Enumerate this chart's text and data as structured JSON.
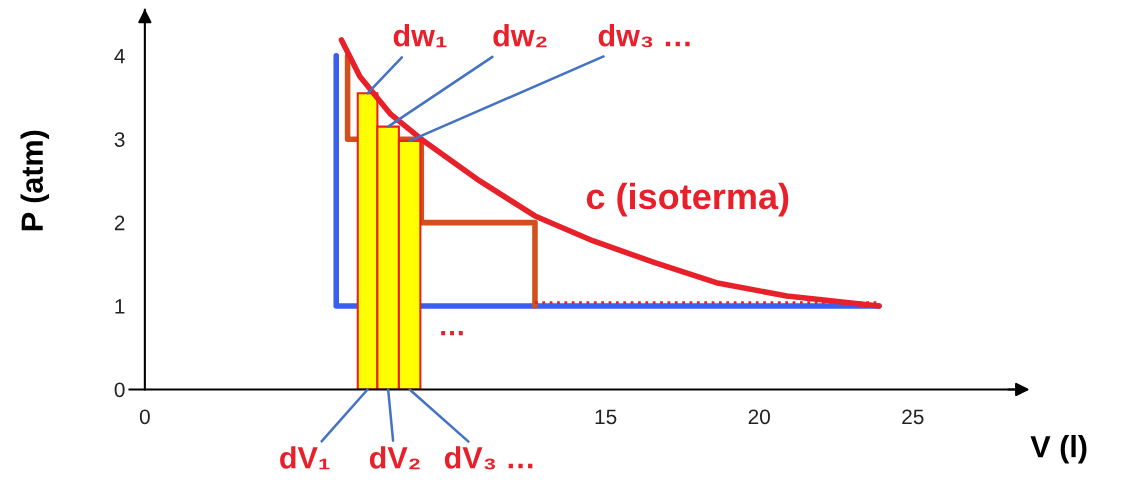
{
  "chart_data": {
    "type": "line",
    "xlabel": "V (l)",
    "ylabel": "P (atm)",
    "xlim": [
      -0.5,
      28.6
    ],
    "ylim": [
      0,
      4.55
    ],
    "xticks": [
      0,
      15,
      20,
      25
    ],
    "yticks": [
      0,
      1,
      2,
      3,
      4
    ],
    "grid": false,
    "legend": false,
    "series": [
      {
        "color": "#3a5ff0",
        "x": [
          6.23,
          6.23,
          23.9
        ],
        "values": [
          4,
          1,
          1
        ]
      },
      {
        "color": "#d2501e",
        "x": [
          6.6,
          6.6,
          9.0,
          9.0,
          12.7,
          12.7
        ],
        "values": [
          4,
          3,
          3,
          2,
          2,
          1
        ]
      },
      {
        "color": "#e8202a",
        "line_style": "dotted",
        "x": [
          12.7,
          23.9
        ],
        "values": [
          1.04,
          1.04
        ]
      },
      {
        "type": "histogram",
        "color": "#ffff00",
        "bins": [
          6.93,
          7.57,
          8.27,
          8.97
        ],
        "values": [
          3.55,
          3.15,
          2.98
        ]
      },
      {
        "name": "c (isoterma)",
        "color": "#e8202a",
        "x": [
          6.4,
          7.0,
          8.0,
          9.0,
          10.9,
          12.7,
          14.6,
          16.6,
          18.6,
          20.9,
          23.9
        ],
        "values": [
          4.19,
          3.75,
          3.3,
          3.0,
          2.5,
          2.08,
          1.78,
          1.52,
          1.28,
          1.12,
          1.0
        ]
      }
    ],
    "annotations": [
      {
        "text": "dw₁",
        "x": 7.25,
        "y": 3.55
      },
      {
        "text": "dw₂",
        "x": 7.92,
        "y": 3.15
      },
      {
        "text": "dw₃ …",
        "x": 8.62,
        "y": 2.98
      },
      {
        "text": "dV₁",
        "x": 7.25,
        "y": 0
      },
      {
        "text": "dV₂",
        "x": 7.92,
        "y": 0
      },
      {
        "text": "dV₃ …",
        "x": 8.62,
        "y": 0
      },
      "…"
    ]
  }
}
